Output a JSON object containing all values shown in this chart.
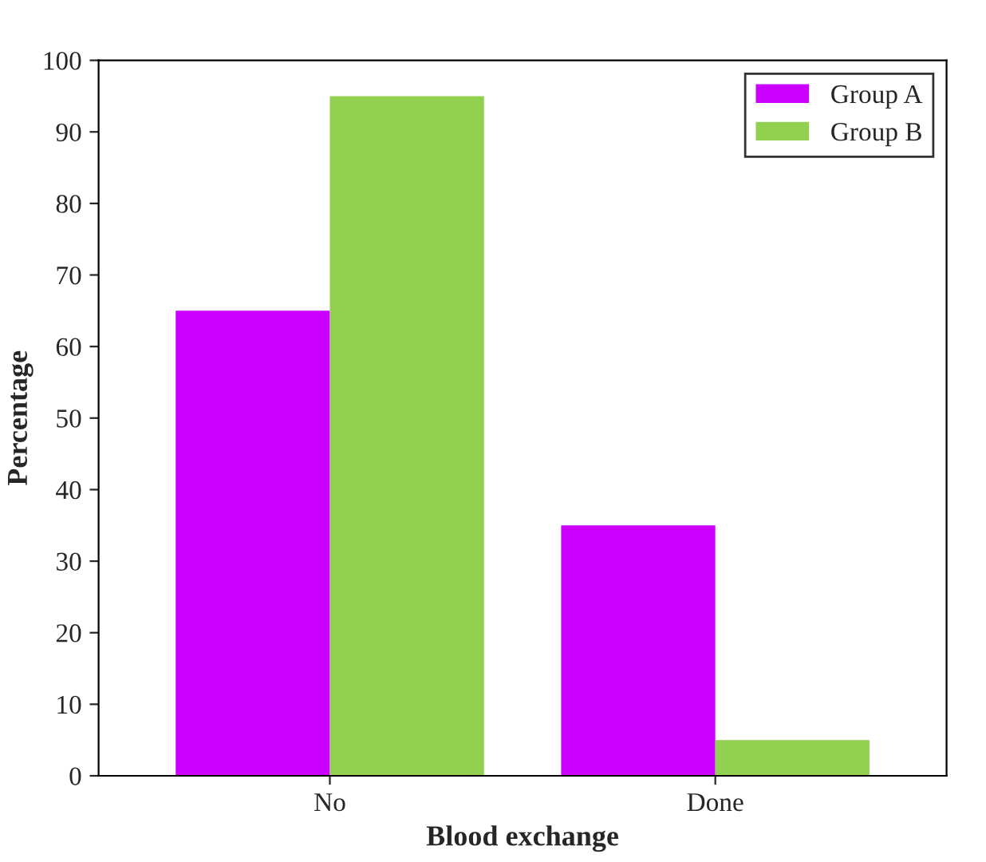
{
  "chart_data": {
    "type": "bar",
    "xlabel": "Blood exchange",
    "ylabel": "Percentage",
    "categories": [
      "No",
      "Done"
    ],
    "series": [
      {
        "name": "Group A",
        "color": "#cc00ff",
        "values": [
          65,
          35
        ]
      },
      {
        "name": "Group B",
        "color": "#92d050",
        "values": [
          95,
          5
        ]
      }
    ],
    "ylim": [
      0,
      100
    ],
    "yticks": [
      0,
      10,
      20,
      30,
      40,
      50,
      60,
      70,
      80,
      90,
      100
    ],
    "grid": false,
    "legend": "top right"
  }
}
